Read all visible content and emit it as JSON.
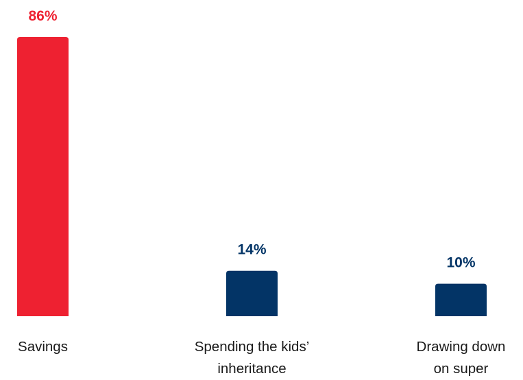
{
  "chart_data": {
    "type": "bar",
    "categories": [
      [
        "Savings"
      ],
      [
        "Spending the kids’",
        "inheritance"
      ],
      [
        "Drawing down",
        "on super"
      ]
    ],
    "values": [
      86,
      14,
      10
    ],
    "value_labels": [
      "86%",
      "14%",
      "10%"
    ],
    "unit": "%",
    "colors": [
      "#ee2131",
      "#033466",
      "#033466"
    ],
    "title": "",
    "xlabel": "",
    "ylabel": "",
    "ylim": [
      0,
      86
    ],
    "grid": false,
    "legend": "none"
  }
}
